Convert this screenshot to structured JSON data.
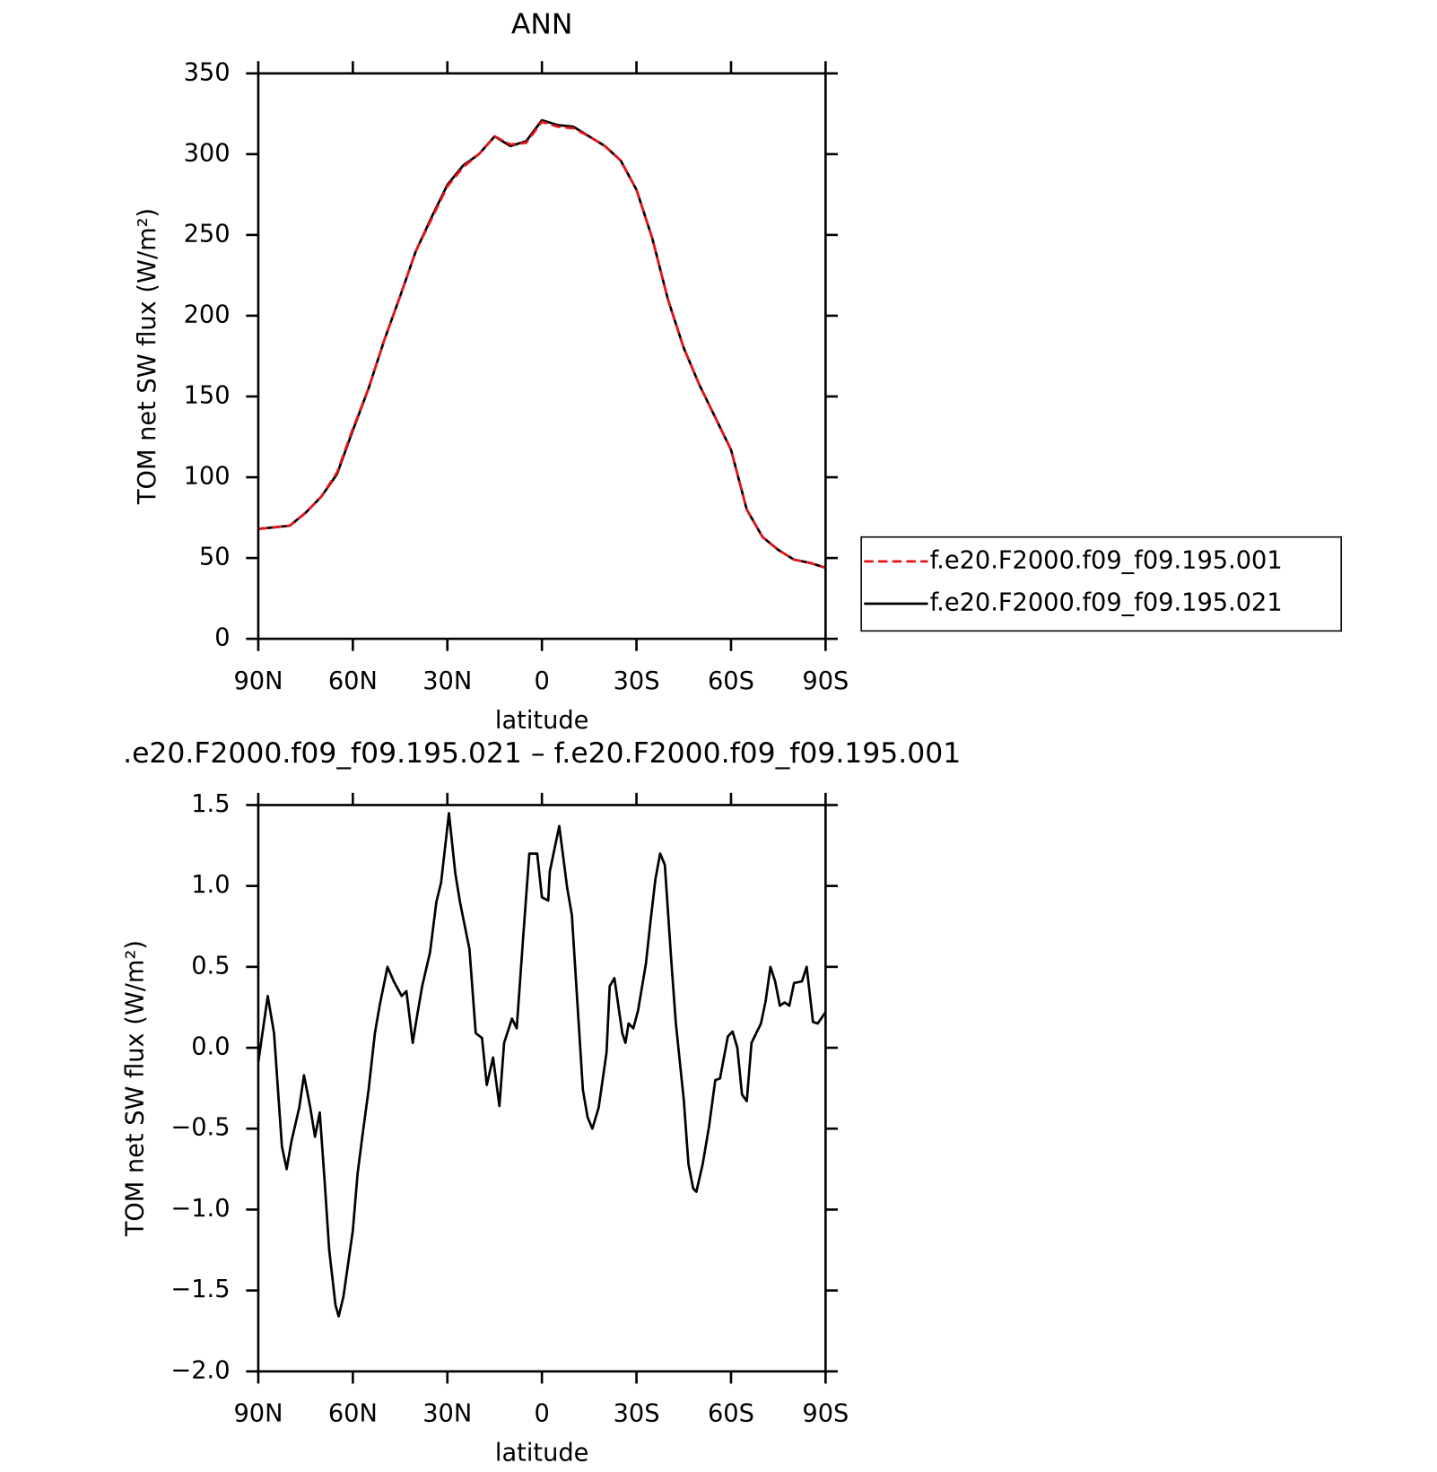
{
  "chart_data": [
    {
      "type": "line",
      "title": "ANN",
      "ylabel": "TOM net SW flux (W/m²)",
      "xlabel": "latitude",
      "x": [
        90,
        85,
        80,
        75,
        70,
        65,
        60,
        55,
        50,
        45,
        40,
        35,
        30,
        25,
        20,
        15,
        10,
        5,
        0,
        -5,
        -10,
        -15,
        -20,
        -25,
        -30,
        -35,
        -40,
        -45,
        -50,
        -55,
        -60,
        -65,
        -70,
        -75,
        -80,
        -85,
        -90
      ],
      "series": [
        {
          "name": "f.e20.F2000.f09_f09.195.001",
          "color": "#e8141b",
          "line_style": "dashed",
          "values": [
            68,
            69,
            70,
            78,
            88,
            103,
            130,
            155,
            185,
            212,
            240,
            260,
            280,
            292,
            300,
            311,
            306,
            307,
            320,
            317,
            316,
            311,
            305,
            296,
            278,
            248,
            210,
            180,
            157,
            137,
            117,
            80,
            63,
            55,
            49,
            47,
            44
          ]
        },
        {
          "name": "f.e20.F2000.f09_f09.195.021",
          "color": "#000000",
          "line_style": "solid",
          "values": [
            68,
            69,
            70,
            78,
            88,
            102,
            129,
            155,
            185,
            212,
            240,
            261,
            281,
            293,
            300,
            311,
            305,
            308,
            321,
            318,
            317,
            311,
            305,
            296,
            278,
            248,
            210,
            180,
            157,
            137,
            117,
            80,
            63,
            55,
            49,
            47,
            44
          ]
        }
      ],
      "xlim": [
        90,
        -90
      ],
      "xticks": [
        {
          "value": 90,
          "label": "90N"
        },
        {
          "value": 60,
          "label": "60N"
        },
        {
          "value": 30,
          "label": "30N"
        },
        0,
        {
          "value": -30,
          "label": "30S"
        },
        {
          "value": -60,
          "label": "60S"
        },
        {
          "value": -90,
          "label": "90S"
        }
      ],
      "ylim": [
        0,
        350
      ],
      "yticks": [
        0,
        50,
        100,
        150,
        200,
        250,
        300,
        350
      ],
      "legend": "right"
    },
    {
      "type": "line",
      "title": ".e20.F2000.f09_f09.195.021 – f.e20.F2000.f09_f09.195.001",
      "ylabel": "TOM net SW flux (W/m²)",
      "xlabel": "latitude",
      "x": [
        90,
        87,
        85,
        82.5,
        81,
        79.5,
        77,
        75.5,
        73.5,
        72,
        70.5,
        69,
        67.5,
        65.5,
        64.5,
        63,
        60,
        58.5,
        57,
        55,
        53,
        51.5,
        49,
        47,
        44.5,
        43,
        41,
        39.5,
        38,
        35.5,
        33.5,
        32,
        29.5,
        27.5,
        26,
        23,
        21,
        19,
        17.5,
        15.5,
        13.5,
        12,
        9.5,
        8,
        6,
        4,
        1.5,
        0,
        -2,
        -2.5,
        -5.5,
        -8,
        -9.5,
        -13,
        -14.5,
        -16,
        -18,
        -20.5,
        -21.5,
        -23,
        -25.5,
        -26.5,
        -27.5,
        -29,
        -30.5,
        -33,
        -34.5,
        -36,
        -37.5,
        -39,
        -41,
        -42.5,
        -45,
        -46.5,
        -48,
        -49,
        -51,
        -53,
        -55,
        -56.5,
        -59,
        -60.5,
        -62,
        -63.5,
        -65,
        -66.5,
        -68,
        -69.5,
        -71,
        -72.5,
        -74,
        -75.5,
        -77,
        -78.5,
        -80,
        -82.5,
        -84,
        -86,
        -87.5,
        -90
      ],
      "series": [
        {
          "color": "#000000",
          "line_style": "solid",
          "values": [
            -0.09,
            0.32,
            0.09,
            -0.61,
            -0.75,
            -0.58,
            -0.37,
            -0.17,
            -0.37,
            -0.55,
            -0.4,
            -0.81,
            -1.25,
            -1.59,
            -1.66,
            -1.54,
            -1.13,
            -0.78,
            -0.55,
            -0.26,
            0.09,
            0.26,
            0.5,
            0.41,
            0.32,
            0.35,
            0.03,
            0.21,
            0.38,
            0.59,
            0.9,
            1.02,
            1.45,
            1.08,
            0.9,
            0.61,
            0.09,
            0.06,
            -0.23,
            -0.06,
            -0.36,
            0.03,
            0.18,
            0.12,
            0.67,
            1.2,
            1.2,
            0.93,
            0.91,
            1.09,
            1.37,
            0.99,
            0.82,
            -0.26,
            -0.43,
            -0.5,
            -0.37,
            -0.03,
            0.38,
            0.43,
            0.09,
            0.03,
            0.15,
            0.12,
            0.23,
            0.52,
            0.79,
            1.04,
            1.2,
            1.13,
            0.55,
            0.15,
            -0.32,
            -0.72,
            -0.87,
            -0.89,
            -0.72,
            -0.49,
            -0.2,
            -0.19,
            0.07,
            0.1,
            0.0,
            -0.29,
            -0.33,
            0.03,
            0.09,
            0.15,
            0.29,
            0.5,
            0.41,
            0.26,
            0.28,
            0.26,
            0.4,
            0.41,
            0.5,
            0.16,
            0.15,
            0.22
          ]
        }
      ],
      "xlim": [
        90,
        -90
      ],
      "xticks": [
        {
          "value": 90,
          "label": "90N"
        },
        {
          "value": 60,
          "label": "60N"
        },
        {
          "value": 30,
          "label": "30N"
        },
        0,
        {
          "value": -30,
          "label": "30S"
        },
        {
          "value": -60,
          "label": "60S"
        },
        {
          "value": -90,
          "label": "90S"
        }
      ],
      "ylim": [
        -2.0,
        1.5
      ],
      "yticks": [
        {
          "value": -2.0,
          "label": "−2.0"
        },
        {
          "value": -1.5,
          "label": "−1.5"
        },
        {
          "value": -1.0,
          "label": "−1.0"
        },
        {
          "value": -0.5,
          "label": "−0.5"
        },
        {
          "value": 0.0,
          "label": "0.0"
        },
        0.5,
        {
          "value": 1.0,
          "label": "1.0"
        },
        1.5
      ]
    }
  ]
}
